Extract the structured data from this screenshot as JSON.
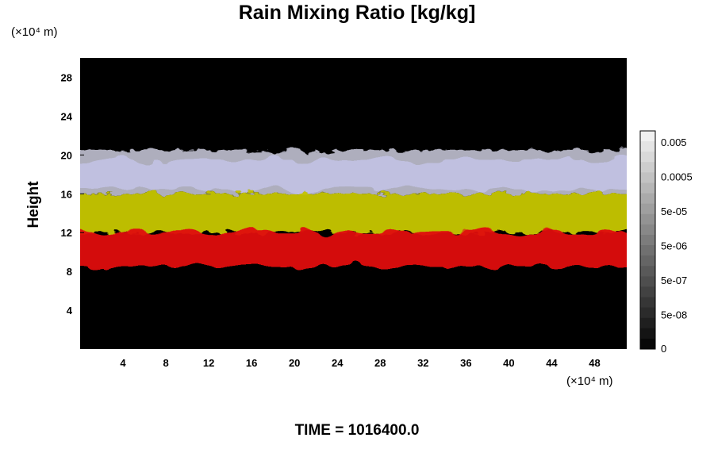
{
  "chart_data": {
    "type": "heatmap",
    "title": "Rain Mixing Ratio [kg/kg]",
    "ylabel": "Height",
    "y_unit_label": "(×10⁴ m)",
    "x_unit_label": "(×10⁴ m)",
    "footer": "TIME = 1016400.0",
    "xlim": [
      0,
      51
    ],
    "ylim": [
      0,
      30
    ],
    "x_ticks": [
      4,
      8,
      12,
      16,
      20,
      24,
      28,
      32,
      36,
      40,
      44,
      48
    ],
    "y_ticks": [
      4,
      8,
      12,
      16,
      20,
      24,
      28
    ],
    "layers": [
      {
        "name": "upper-grey",
        "y_bottom": 16,
        "y_top": 20.5,
        "color": "#b8b8c8"
      },
      {
        "name": "upper-lavender",
        "y_bottom": 16.5,
        "y_top": 19.5,
        "color": "#c8c8f0"
      },
      {
        "name": "yellow",
        "y_bottom": 12,
        "y_top": 16,
        "color": "#c8c800"
      },
      {
        "name": "red",
        "y_bottom": 8.5,
        "y_top": 12,
        "color": "#e01010"
      }
    ],
    "colorbar": {
      "labels": [
        "0.005",
        "0.0005",
        "5e-05",
        "5e-06",
        "5e-07",
        "5e-08",
        "0"
      ],
      "gradient": [
        "#f0f0f0",
        "#000000"
      ]
    }
  }
}
